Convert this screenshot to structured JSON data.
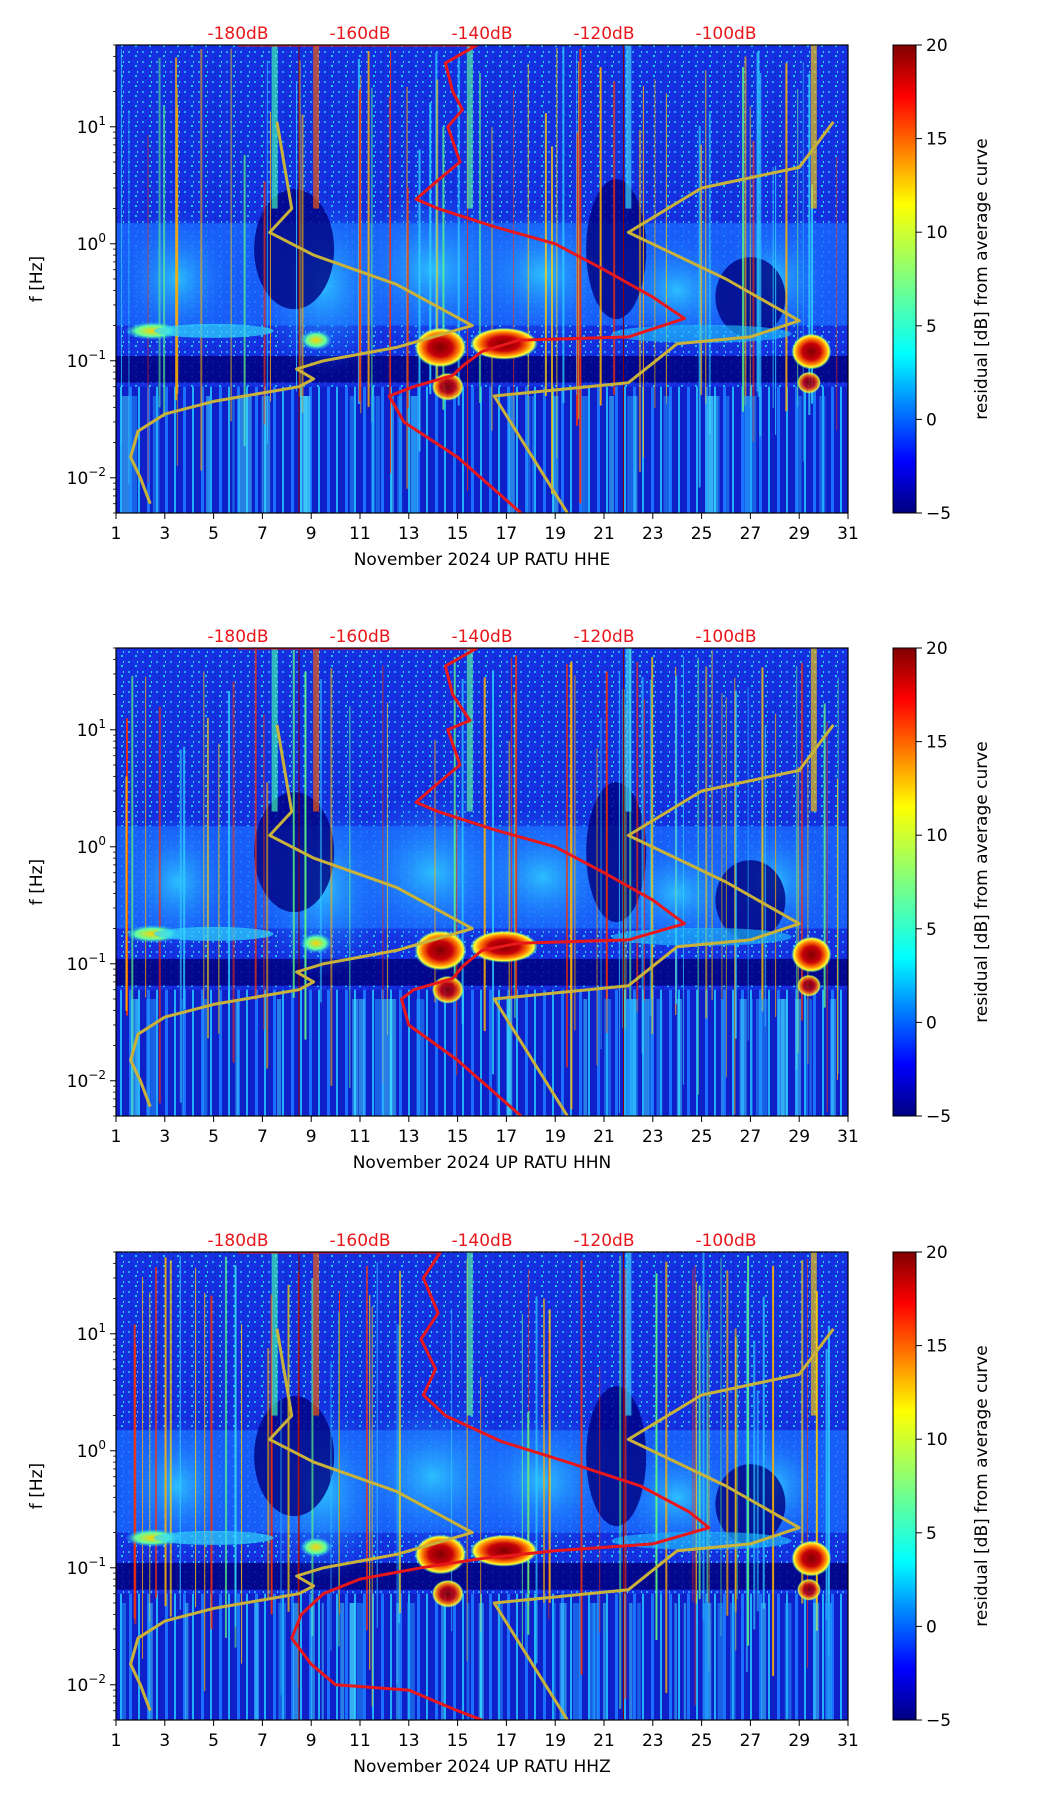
{
  "chart_data": [
    {
      "type": "heatmap",
      "xlabel": "November 2024 UP RATU  HHE",
      "ylabel": "f [Hz]",
      "x_ticks": [
        "1",
        "3",
        "5",
        "7",
        "9",
        "11",
        "13",
        "15",
        "17",
        "19",
        "21",
        "23",
        "25",
        "27",
        "29",
        "31"
      ],
      "xlim": [
        1,
        31
      ],
      "ylim_hz": [
        0.005,
        50
      ],
      "y_ticks": [
        "10⁻²",
        "10⁻¹",
        "10⁰",
        "10¹"
      ],
      "db_ticks": [
        "-180dB",
        "-160dB",
        "-140dB",
        "-120dB",
        "-100dB"
      ],
      "colorbar": {
        "label": "residual [dB] from average curve",
        "ticks": [
          "−5",
          "0",
          "5",
          "10",
          "15",
          "20"
        ],
        "range": [
          -5,
          20
        ]
      },
      "series": [
        {
          "name": "noise model (yellow)",
          "color": "#c9b23a",
          "points": [
            [
              7.6,
              11
            ],
            [
              8.2,
              2
            ],
            [
              7.3,
              1.25
            ],
            [
              9.1,
              0.8
            ],
            [
              12.5,
              0.45
            ],
            [
              15.6,
              0.2
            ],
            [
              12.5,
              0.13
            ],
            [
              9.5,
              0.1
            ],
            [
              8.4,
              0.085
            ],
            [
              9.1,
              0.07
            ],
            [
              8.5,
              0.06
            ],
            [
              5,
              0.045
            ],
            [
              3,
              0.035
            ],
            [
              1.9,
              0.025
            ],
            [
              1.6,
              0.015
            ],
            [
              2,
              0.01
            ],
            [
              2.4,
              0.006
            ]
          ]
        },
        {
          "name": "noise model (yellow, right)",
          "color": "#c9b23a",
          "points": [
            [
              30.4,
              11
            ],
            [
              29,
              4.5
            ],
            [
              25,
              3
            ],
            [
              22,
              1.25
            ],
            [
              26,
              0.5
            ],
            [
              29,
              0.22
            ],
            [
              27,
              0.16
            ],
            [
              24,
              0.14
            ],
            [
              22,
              0.065
            ],
            [
              16.5,
              0.05
            ],
            [
              19.5,
              0.005
            ]
          ]
        },
        {
          "name": "median PSD (red)",
          "color": "#e8171b",
          "points": [
            [
              6,
              50
            ],
            [
              15.8,
              50
            ],
            [
              14.5,
              35
            ],
            [
              14.8,
              20
            ],
            [
              15.2,
              14
            ],
            [
              14.6,
              10
            ],
            [
              15.1,
              5
            ],
            [
              14.2,
              3.5
            ],
            [
              13.3,
              2.4
            ],
            [
              14.2,
              2
            ],
            [
              16.5,
              1.4
            ],
            [
              19,
              1
            ],
            [
              21,
              0.6
            ],
            [
              23,
              0.35
            ],
            [
              24.3,
              0.23
            ],
            [
              22,
              0.16
            ],
            [
              17.5,
              0.15
            ],
            [
              16,
              0.12
            ],
            [
              15.2,
              0.09
            ],
            [
              14.8,
              0.075
            ],
            [
              13.2,
              0.06
            ],
            [
              12.2,
              0.05
            ],
            [
              12.8,
              0.03
            ],
            [
              15,
              0.015
            ],
            [
              17.6,
              0.005
            ]
          ]
        }
      ]
    },
    {
      "type": "heatmap",
      "xlabel": "November 2024 UP RATU  HHN",
      "ylabel": "f [Hz]",
      "x_ticks": [
        "1",
        "3",
        "5",
        "7",
        "9",
        "11",
        "13",
        "15",
        "17",
        "19",
        "21",
        "23",
        "25",
        "27",
        "29",
        "31"
      ],
      "xlim": [
        1,
        31
      ],
      "ylim_hz": [
        0.005,
        50
      ],
      "y_ticks": [
        "10⁻²",
        "10⁻¹",
        "10⁰",
        "10¹"
      ],
      "db_ticks": [
        "-180dB",
        "-160dB",
        "-140dB",
        "-120dB",
        "-100dB"
      ],
      "colorbar": {
        "label": "residual [dB] from average curve",
        "ticks": [
          "−5",
          "0",
          "5",
          "10",
          "15",
          "20"
        ],
        "range": [
          -5,
          20
        ]
      },
      "series": [
        {
          "name": "noise model (yellow)",
          "color": "#c9b23a",
          "points": [
            [
              7.6,
              11
            ],
            [
              8.2,
              2
            ],
            [
              7.3,
              1.25
            ],
            [
              9.1,
              0.8
            ],
            [
              12.5,
              0.45
            ],
            [
              15.6,
              0.2
            ],
            [
              12.5,
              0.13
            ],
            [
              9.5,
              0.1
            ],
            [
              8.4,
              0.085
            ],
            [
              9.1,
              0.07
            ],
            [
              8.5,
              0.06
            ],
            [
              5,
              0.045
            ],
            [
              3,
              0.035
            ],
            [
              1.9,
              0.025
            ],
            [
              1.6,
              0.015
            ],
            [
              2,
              0.01
            ],
            [
              2.4,
              0.006
            ]
          ]
        },
        {
          "name": "noise model (yellow, right)",
          "color": "#c9b23a",
          "points": [
            [
              30.4,
              11
            ],
            [
              29,
              4.5
            ],
            [
              25,
              3
            ],
            [
              22,
              1.25
            ],
            [
              26,
              0.5
            ],
            [
              29,
              0.22
            ],
            [
              27,
              0.16
            ],
            [
              24,
              0.14
            ],
            [
              22,
              0.065
            ],
            [
              16.5,
              0.05
            ],
            [
              19.5,
              0.005
            ]
          ]
        },
        {
          "name": "median PSD (red)",
          "color": "#e8171b",
          "points": [
            [
              6,
              50
            ],
            [
              15.8,
              50
            ],
            [
              14.5,
              35
            ],
            [
              14.8,
              20
            ],
            [
              15.5,
              12
            ],
            [
              14.6,
              10
            ],
            [
              15.1,
              5
            ],
            [
              14.2,
              3.5
            ],
            [
              13.3,
              2.4
            ],
            [
              14.2,
              2
            ],
            [
              16.5,
              1.4
            ],
            [
              19,
              1
            ],
            [
              21,
              0.6
            ],
            [
              23,
              0.35
            ],
            [
              24.3,
              0.22
            ],
            [
              22,
              0.16
            ],
            [
              17.5,
              0.15
            ],
            [
              16,
              0.13
            ],
            [
              15.2,
              0.095
            ],
            [
              14.8,
              0.075
            ],
            [
              13.2,
              0.06
            ],
            [
              12.7,
              0.05
            ],
            [
              13,
              0.03
            ],
            [
              15,
              0.015
            ],
            [
              17.6,
              0.005
            ]
          ]
        }
      ]
    },
    {
      "type": "heatmap",
      "xlabel": "November 2024 UP RATU  HHZ",
      "ylabel": "f [Hz]",
      "x_ticks": [
        "1",
        "3",
        "5",
        "7",
        "9",
        "11",
        "13",
        "15",
        "17",
        "19",
        "21",
        "23",
        "25",
        "27",
        "29",
        "31"
      ],
      "xlim": [
        1,
        31
      ],
      "ylim_hz": [
        0.005,
        50
      ],
      "y_ticks": [
        "10⁻²",
        "10⁻¹",
        "10⁰",
        "10¹"
      ],
      "db_ticks": [
        "-180dB",
        "-160dB",
        "-140dB",
        "-120dB",
        "-100dB"
      ],
      "colorbar": {
        "label": "residual [dB] from average curve",
        "ticks": [
          "−5",
          "0",
          "5",
          "10",
          "15",
          "20"
        ],
        "range": [
          -5,
          20
        ]
      },
      "series": [
        {
          "name": "noise model (yellow)",
          "color": "#c9b23a",
          "points": [
            [
              7.6,
              11
            ],
            [
              8.2,
              2
            ],
            [
              7.3,
              1.25
            ],
            [
              9.1,
              0.8
            ],
            [
              12.5,
              0.45
            ],
            [
              15.6,
              0.2
            ],
            [
              12.5,
              0.13
            ],
            [
              9.5,
              0.1
            ],
            [
              8.4,
              0.085
            ],
            [
              9.1,
              0.07
            ],
            [
              8.5,
              0.06
            ],
            [
              5,
              0.045
            ],
            [
              3,
              0.035
            ],
            [
              1.9,
              0.025
            ],
            [
              1.6,
              0.015
            ],
            [
              2,
              0.01
            ],
            [
              2.4,
              0.006
            ]
          ]
        },
        {
          "name": "noise model (yellow, right)",
          "color": "#c9b23a",
          "points": [
            [
              30.4,
              11
            ],
            [
              29,
              4.5
            ],
            [
              25,
              3
            ],
            [
              22,
              1.25
            ],
            [
              26,
              0.5
            ],
            [
              29,
              0.22
            ],
            [
              27,
              0.16
            ],
            [
              24,
              0.14
            ],
            [
              22,
              0.065
            ],
            [
              16.5,
              0.05
            ],
            [
              19.5,
              0.005
            ]
          ]
        },
        {
          "name": "median PSD (red)",
          "color": "#e8171b",
          "points": [
            [
              6,
              50
            ],
            [
              14.3,
              50
            ],
            [
              13.6,
              30
            ],
            [
              14.2,
              15
            ],
            [
              13.5,
              9
            ],
            [
              14.1,
              5
            ],
            [
              13.6,
              3
            ],
            [
              14.5,
              2
            ],
            [
              16.8,
              1.2
            ],
            [
              19.5,
              0.8
            ],
            [
              22.5,
              0.5
            ],
            [
              24.5,
              0.3
            ],
            [
              25.3,
              0.22
            ],
            [
              23,
              0.16
            ],
            [
              19,
              0.14
            ],
            [
              16,
              0.12
            ],
            [
              13.5,
              0.1
            ],
            [
              11,
              0.08
            ],
            [
              9.5,
              0.06
            ],
            [
              8.6,
              0.04
            ],
            [
              8.2,
              0.025
            ],
            [
              9,
              0.015
            ],
            [
              10,
              0.01
            ],
            [
              13,
              0.009
            ],
            [
              15,
              0.006
            ],
            [
              16,
              0.005
            ]
          ]
        }
      ]
    }
  ]
}
